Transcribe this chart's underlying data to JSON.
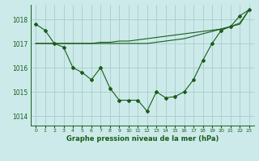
{
  "title": "Graphe pression niveau de la mer (hPa)",
  "bg_color": "#cceaea",
  "grid_color": "#aacccc",
  "line_color": "#1a5c1a",
  "xlim": [
    -0.5,
    23.5
  ],
  "ylim": [
    1013.6,
    1018.6
  ],
  "yticks": [
    1014,
    1015,
    1016,
    1017,
    1018
  ],
  "xticks": [
    0,
    1,
    2,
    3,
    4,
    5,
    6,
    7,
    8,
    9,
    10,
    11,
    12,
    13,
    14,
    15,
    16,
    17,
    18,
    19,
    20,
    21,
    22,
    23
  ],
  "series1_x": [
    0,
    1,
    2,
    3,
    4,
    5,
    6,
    7,
    8,
    9,
    10,
    11,
    12,
    13,
    14,
    15,
    16,
    17,
    18,
    19,
    20,
    21,
    22,
    23
  ],
  "series1_y": [
    1017.8,
    1017.55,
    1017.0,
    1016.85,
    1016.0,
    1015.8,
    1015.5,
    1016.0,
    1015.15,
    1014.65,
    1014.65,
    1014.65,
    1014.2,
    1015.0,
    1014.75,
    1014.8,
    1015.0,
    1015.5,
    1016.3,
    1017.0,
    1017.55,
    1017.7,
    1018.15,
    1018.4
  ],
  "series2_x": [
    0,
    1,
    2,
    3,
    4,
    5,
    6,
    7,
    8,
    9,
    10,
    11,
    12,
    13,
    14,
    15,
    16,
    17,
    18,
    19,
    20,
    21,
    22,
    23
  ],
  "series2_y": [
    1017.0,
    1017.0,
    1017.0,
    1017.0,
    1017.0,
    1017.0,
    1017.0,
    1017.05,
    1017.05,
    1017.1,
    1017.1,
    1017.15,
    1017.2,
    1017.25,
    1017.3,
    1017.35,
    1017.4,
    1017.45,
    1017.5,
    1017.55,
    1017.6,
    1017.7,
    1017.8,
    1018.4
  ],
  "series3_x": [
    0,
    1,
    2,
    3,
    4,
    5,
    6,
    7,
    8,
    9,
    10,
    11,
    12,
    13,
    14,
    15,
    16,
    17,
    18,
    19,
    20,
    21,
    22,
    23
  ],
  "series3_y": [
    1017.0,
    1017.0,
    1017.0,
    1017.0,
    1017.0,
    1017.0,
    1017.0,
    1017.0,
    1017.0,
    1017.0,
    1017.0,
    1017.0,
    1017.0,
    1017.05,
    1017.1,
    1017.15,
    1017.2,
    1017.3,
    1017.4,
    1017.5,
    1017.6,
    1017.7,
    1017.85,
    1018.4
  ]
}
